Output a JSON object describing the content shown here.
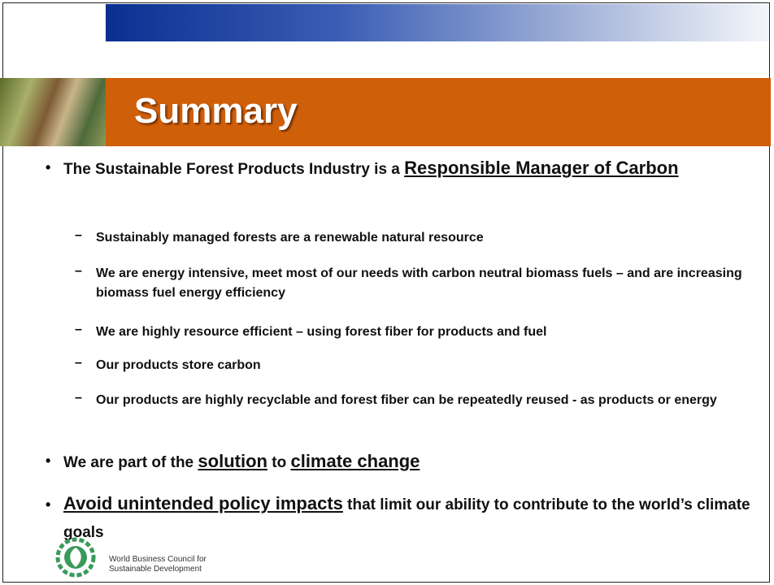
{
  "header": {
    "title": "Summary"
  },
  "bullets": [
    {
      "text": "The Sustainable Forest Products Industry is a",
      "emphasis": "Responsible Manager of Carbon",
      "subpoints": [
        "Sustainably managed forests are a renewable natural resource",
        "We are energy intensive, meet most of our needs with carbon neutral biomass fuels – and are increasing biomass fuel energy efficiency",
        "We are highly resource efficient – using forest fiber for products and fuel",
        "Our products store carbon",
        "Our products are highly recyclable and forest fiber can be repeatedly reused - as products or energy"
      ]
    },
    {
      "parts": [
        "We are part of the",
        "solution",
        "to",
        "climate change"
      ]
    },
    {
      "parts": [
        "Avoid unintended policy impacts",
        "that limit our ability to contribute to the world’s climate goals"
      ]
    }
  ],
  "footer": {
    "logo_line1": "World Business Council for",
    "logo_line2": "Sustainable Development"
  }
}
